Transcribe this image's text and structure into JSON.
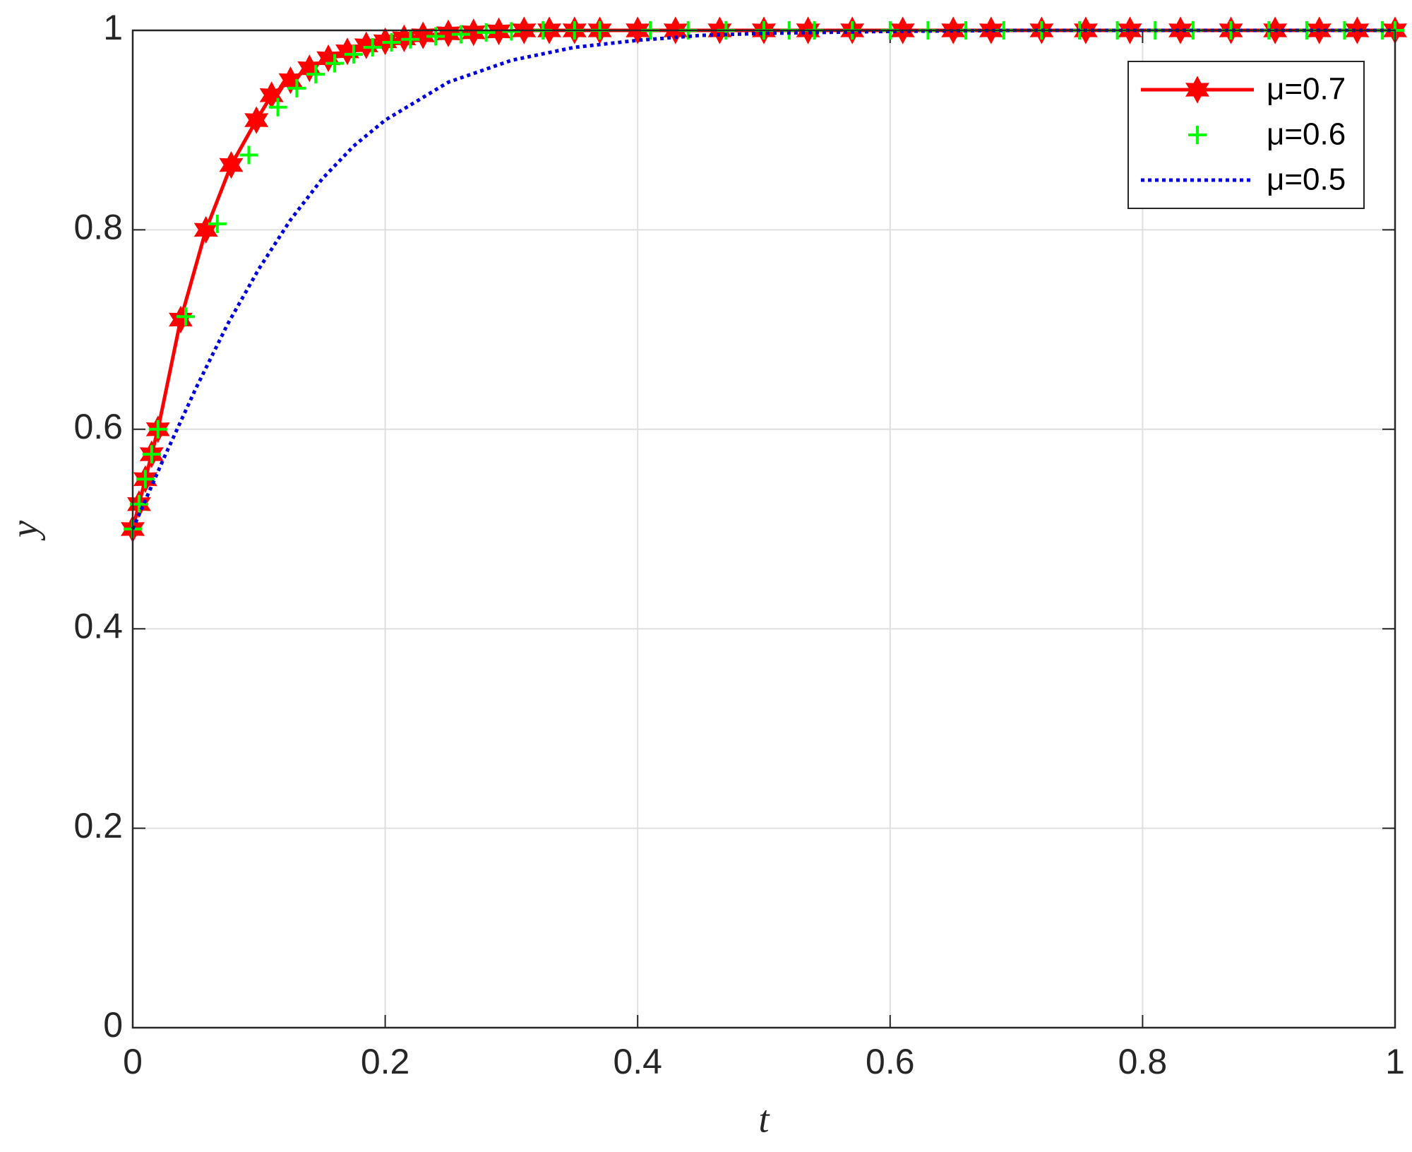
{
  "chart_data": {
    "type": "line",
    "xlabel": "t",
    "ylabel": "y",
    "xlim": [
      0,
      1
    ],
    "ylim": [
      0,
      1
    ],
    "xticks": [
      0,
      0.2,
      0.4,
      0.6,
      0.8,
      1
    ],
    "yticks": [
      0,
      0.2,
      0.4,
      0.6,
      0.8,
      1
    ],
    "grid": true,
    "legend": "upper right",
    "series": [
      {
        "name": "μ=0.7",
        "color": "#ff0000",
        "line_style": "solid",
        "marker": "hexagram",
        "x": [
          0,
          0.005,
          0.01,
          0.015,
          0.02,
          0.038,
          0.058,
          0.078,
          0.098,
          0.11,
          0.125,
          0.14,
          0.155,
          0.17,
          0.185,
          0.2,
          0.215,
          0.23,
          0.25,
          0.27,
          0.29,
          0.31,
          0.33,
          0.35,
          0.37,
          0.4,
          0.43,
          0.465,
          0.5,
          0.535,
          0.57,
          0.61,
          0.65,
          0.68,
          0.72,
          0.755,
          0.79,
          0.83,
          0.87,
          0.905,
          0.94,
          0.97,
          1
        ],
        "values": [
          0.5,
          0.525,
          0.55,
          0.575,
          0.6,
          0.71,
          0.8,
          0.865,
          0.91,
          0.935,
          0.95,
          0.962,
          0.972,
          0.979,
          0.985,
          0.989,
          0.992,
          0.995,
          0.997,
          0.998,
          0.999,
          1,
          1,
          1,
          1,
          1,
          1,
          1,
          1,
          1,
          1,
          1,
          1,
          1,
          1,
          1,
          1,
          1,
          1,
          1,
          1,
          1,
          1
        ]
      },
      {
        "name": "μ=0.6",
        "color": "#00ff00",
        "line_style": "none",
        "marker": "plus",
        "x": [
          0,
          0.005,
          0.01,
          0.015,
          0.02,
          0.042,
          0.067,
          0.092,
          0.115,
          0.13,
          0.145,
          0.16,
          0.175,
          0.19,
          0.205,
          0.22,
          0.24,
          0.26,
          0.28,
          0.3,
          0.325,
          0.35,
          0.37,
          0.41,
          0.44,
          0.47,
          0.5,
          0.52,
          0.54,
          0.57,
          0.6,
          0.63,
          0.66,
          0.69,
          0.72,
          0.75,
          0.78,
          0.81,
          0.84,
          0.87,
          0.9,
          0.93,
          0.96,
          0.99,
          1
        ],
        "values": [
          0.5,
          0.525,
          0.55,
          0.575,
          0.6,
          0.713,
          0.806,
          0.875,
          0.923,
          0.942,
          0.956,
          0.967,
          0.976,
          0.983,
          0.988,
          0.991,
          0.994,
          0.996,
          0.998,
          0.999,
          1,
          1,
          1,
          1,
          1,
          1,
          1,
          1,
          1,
          1,
          1,
          1,
          1,
          1,
          1,
          1,
          1,
          1,
          1,
          1,
          1,
          1,
          1,
          1,
          1
        ]
      },
      {
        "name": "μ=0.5",
        "color": "#0000dd",
        "line_style": "dotted",
        "marker": "none",
        "x": [
          0,
          0.025,
          0.05,
          0.075,
          0.1,
          0.125,
          0.15,
          0.175,
          0.2,
          0.25,
          0.3,
          0.35,
          0.4,
          0.45,
          0.5,
          0.6,
          0.7,
          0.8,
          0.9,
          1
        ],
        "values": [
          0.5,
          0.572,
          0.641,
          0.705,
          0.761,
          0.81,
          0.851,
          0.884,
          0.91,
          0.948,
          0.97,
          0.983,
          0.99,
          0.995,
          0.997,
          0.999,
          1,
          1,
          1,
          1
        ]
      }
    ]
  }
}
